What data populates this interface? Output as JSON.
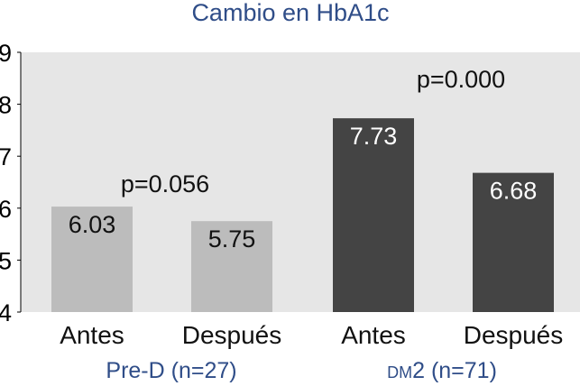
{
  "chart_data": {
    "type": "bar",
    "title": "Cambio en HbA1c",
    "xlabel": "",
    "ylabel": "",
    "ylim": [
      4,
      9
    ],
    "yticks": [
      4,
      5,
      6,
      7,
      8,
      9
    ],
    "grid": false,
    "legend": "none",
    "plot_background": "#e6e6e6",
    "categories": [
      "Antes",
      "Después",
      "Antes",
      "Después"
    ],
    "values": [
      6.03,
      5.75,
      7.73,
      6.68
    ],
    "bar_colors": [
      "#bcbcbc",
      "#bcbcbc",
      "#444444",
      "#444444"
    ],
    "value_label_colors": [
      "#111111",
      "#111111",
      "#ffffff",
      "#ffffff"
    ],
    "groups": [
      {
        "label": "Pre-D (n=27)",
        "label_parts": [
          {
            "text": "Pre-D (n=27)",
            "small": false
          }
        ],
        "bar_indices": [
          0,
          1
        ],
        "p_value_label": "p=0.056"
      },
      {
        "label": "DM2 (n=71)",
        "label_parts": [
          {
            "text": "DM",
            "small": true
          },
          {
            "text": "2 (n=71)",
            "small": false
          }
        ],
        "bar_indices": [
          2,
          3
        ],
        "p_value_label": "p=0.000"
      }
    ]
  }
}
